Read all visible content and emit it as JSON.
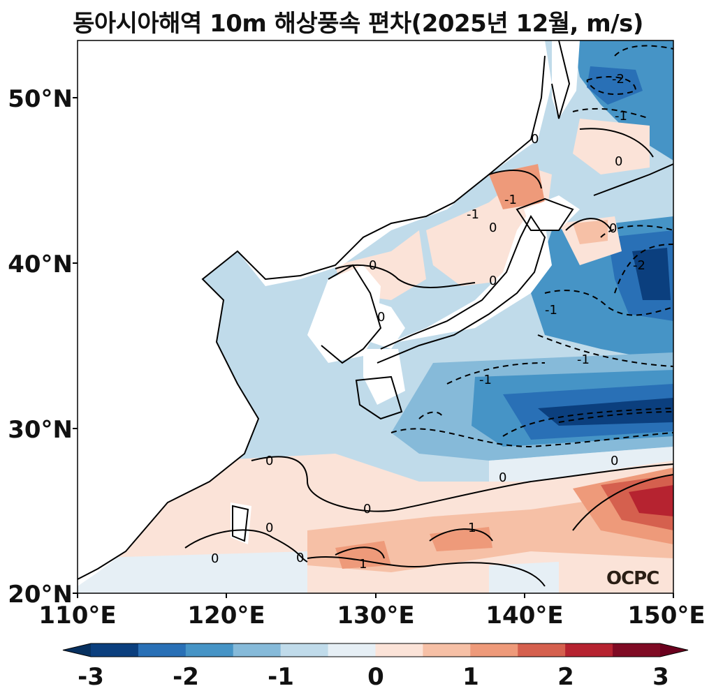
{
  "title": "동아시아해역 10m 해상풍속 편차(2025년 12월, m/s)",
  "map": {
    "lon_range": [
      110,
      150
    ],
    "lat_range": [
      20,
      53.5
    ],
    "lat_ticks": [
      "50°N",
      "40°N",
      "30°N",
      "20°N"
    ],
    "lon_ticks": [
      "110°E",
      "120°E",
      "130°E",
      "140°E",
      "150°E"
    ],
    "contour_labels": [
      "-2",
      "-1",
      "0",
      "0",
      "-1",
      "0",
      "0",
      "-1",
      "0",
      "-2",
      "-1",
      "-1",
      "-1",
      "0",
      "0",
      "0",
      "0",
      "0",
      "1",
      "1",
      "0",
      "0",
      "0",
      "0"
    ],
    "logo": "OCPC"
  },
  "colorbar": {
    "ticks": [
      "-3",
      "-2",
      "-1",
      "0",
      "1",
      "2",
      "3"
    ],
    "colors": [
      "#0b3f7e",
      "#2970b6",
      "#4694c6",
      "#86bad9",
      "#c0dbea",
      "#e6eff5",
      "#fbe3d8",
      "#f6c0a6",
      "#ee9a7a",
      "#d5604e",
      "#b62330",
      "#7f0b24"
    ],
    "extend_low": "#07305f",
    "extend_high": "#6a001d"
  }
}
